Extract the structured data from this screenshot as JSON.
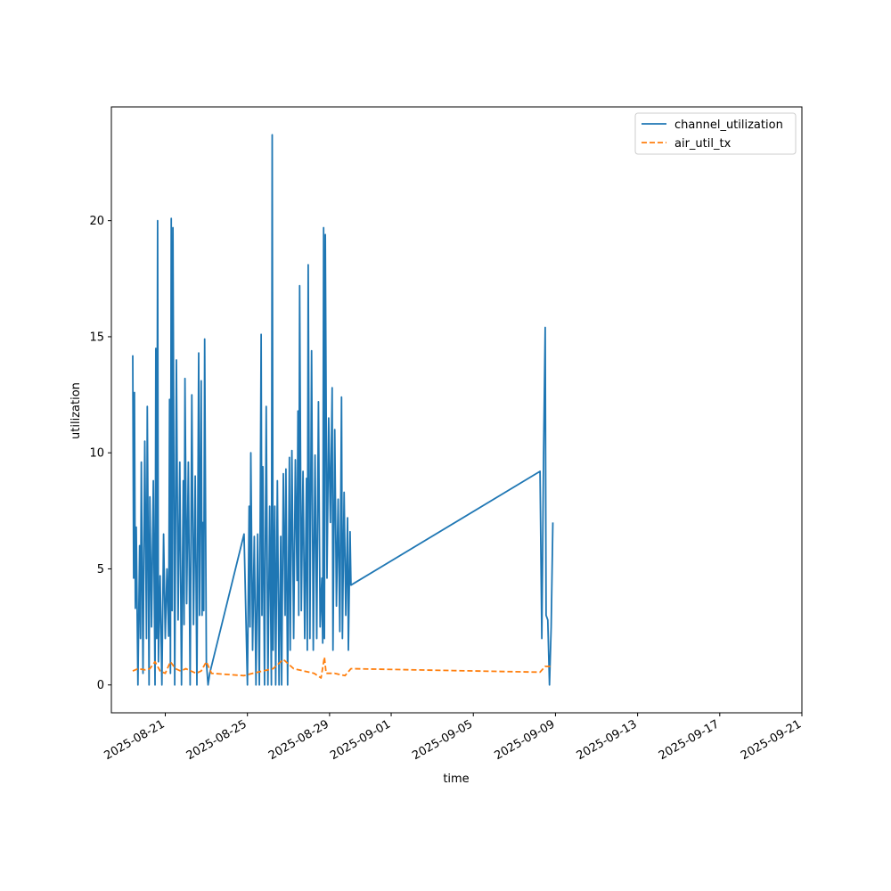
{
  "chart_data": {
    "type": "line",
    "title": "",
    "xlabel": "time",
    "ylabel": "utilization",
    "xlim": [
      "2025-08-18T09:00",
      "2025-09-21T00:00"
    ],
    "ylim": [
      -1.2,
      24.9
    ],
    "x_ticks": [
      "2025-08-21",
      "2025-08-25",
      "2025-08-29",
      "2025-09-01",
      "2025-09-05",
      "2025-09-09",
      "2025-09-13",
      "2025-09-17",
      "2025-09-21"
    ],
    "y_ticks": [
      0,
      5,
      10,
      15,
      20
    ],
    "legend_position": "top-right",
    "grid": false,
    "series": [
      {
        "name": "channel_utilization",
        "color": "#1f77b4",
        "style": "solid",
        "points": [
          [
            "2025-08-19T10:00",
            14.2
          ],
          [
            "2025-08-19T11:00",
            4.6
          ],
          [
            "2025-08-19T12:00",
            12.6
          ],
          [
            "2025-08-19T13:00",
            3.3
          ],
          [
            "2025-08-19T14:00",
            6.8
          ],
          [
            "2025-08-19T16:00",
            0.0
          ],
          [
            "2025-08-19T18:00",
            6.0
          ],
          [
            "2025-08-19T19:00",
            2.0
          ],
          [
            "2025-08-19T20:00",
            9.6
          ],
          [
            "2025-08-19T22:00",
            0.5
          ],
          [
            "2025-08-20T00:00",
            10.5
          ],
          [
            "2025-08-20T02:00",
            2.0
          ],
          [
            "2025-08-20T03:00",
            12.0
          ],
          [
            "2025-08-20T05:00",
            0.0
          ],
          [
            "2025-08-20T06:00",
            8.1
          ],
          [
            "2025-08-20T08:00",
            2.5
          ],
          [
            "2025-08-20T10:00",
            8.8
          ],
          [
            "2025-08-20T12:00",
            0.0
          ],
          [
            "2025-08-20T13:00",
            14.5
          ],
          [
            "2025-08-20T14:00",
            2.0
          ],
          [
            "2025-08-20T15:00",
            20.0
          ],
          [
            "2025-08-20T16:00",
            1.0
          ],
          [
            "2025-08-20T18:00",
            4.7
          ],
          [
            "2025-08-20T20:00",
            0.0
          ],
          [
            "2025-08-20T22:00",
            6.5
          ],
          [
            "2025-08-21T00:00",
            2.0
          ],
          [
            "2025-08-21T02:00",
            5.0
          ],
          [
            "2025-08-21T04:00",
            2.1
          ],
          [
            "2025-08-21T05:00",
            12.3
          ],
          [
            "2025-08-21T06:00",
            0.5
          ],
          [
            "2025-08-21T07:00",
            20.1
          ],
          [
            "2025-08-21T08:00",
            3.2
          ],
          [
            "2025-08-21T09:00",
            19.7
          ],
          [
            "2025-08-21T11:00",
            0.0
          ],
          [
            "2025-08-21T13:00",
            14.0
          ],
          [
            "2025-08-21T15:00",
            2.8
          ],
          [
            "2025-08-21T17:00",
            9.6
          ],
          [
            "2025-08-21T19:00",
            0.0
          ],
          [
            "2025-08-21T21:00",
            8.8
          ],
          [
            "2025-08-21T22:00",
            2.6
          ],
          [
            "2025-08-21T23:00",
            13.2
          ],
          [
            "2025-08-22T01:00",
            3.5
          ],
          [
            "2025-08-22T03:00",
            9.6
          ],
          [
            "2025-08-22T05:00",
            0.0
          ],
          [
            "2025-08-22T07:00",
            12.5
          ],
          [
            "2025-08-22T09:00",
            2.6
          ],
          [
            "2025-08-22T11:00",
            9.0
          ],
          [
            "2025-08-22T13:00",
            0.0
          ],
          [
            "2025-08-22T15:00",
            14.3
          ],
          [
            "2025-08-22T16:00",
            3.0
          ],
          [
            "2025-08-22T18:00",
            13.1
          ],
          [
            "2025-08-22T19:00",
            3.0
          ],
          [
            "2025-08-22T20:00",
            7.0
          ],
          [
            "2025-08-22T21:00",
            3.2
          ],
          [
            "2025-08-22T22:00",
            14.9
          ],
          [
            "2025-08-23T00:00",
            1.0
          ],
          [
            "2025-08-23T02:00",
            0.0
          ],
          [
            "2025-08-23T04:00",
            0.5
          ],
          [
            "2025-08-24T20:00",
            6.5
          ],
          [
            "2025-08-25T00:00",
            0.0
          ],
          [
            "2025-08-25T02:00",
            7.7
          ],
          [
            "2025-08-25T03:00",
            2.5
          ],
          [
            "2025-08-25T04:00",
            10.0
          ],
          [
            "2025-08-25T06:00",
            1.5
          ],
          [
            "2025-08-25T08:00",
            6.4
          ],
          [
            "2025-08-25T10:00",
            0.0
          ],
          [
            "2025-08-25T12:00",
            6.5
          ],
          [
            "2025-08-25T14:00",
            0.0
          ],
          [
            "2025-08-25T16:00",
            15.1
          ],
          [
            "2025-08-25T17:00",
            3.0
          ],
          [
            "2025-08-25T18:00",
            9.4
          ],
          [
            "2025-08-25T20:00",
            0.0
          ],
          [
            "2025-08-25T22:00",
            12.0
          ],
          [
            "2025-08-26T00:00",
            0.0
          ],
          [
            "2025-08-26T02:00",
            7.7
          ],
          [
            "2025-08-26T04:00",
            0.0
          ],
          [
            "2025-08-26T05:00",
            23.7
          ],
          [
            "2025-08-26T06:00",
            1.5
          ],
          [
            "2025-08-26T08:00",
            7.7
          ],
          [
            "2025-08-26T09:00",
            0.0
          ],
          [
            "2025-08-26T11:00",
            8.8
          ],
          [
            "2025-08-26T13:00",
            0.0
          ],
          [
            "2025-08-26T15:00",
            6.4
          ],
          [
            "2025-08-26T16:00",
            0.0
          ],
          [
            "2025-08-26T18:00",
            9.1
          ],
          [
            "2025-08-26T20:00",
            3.0
          ],
          [
            "2025-08-26T21:00",
            9.3
          ],
          [
            "2025-08-26T23:00",
            0.0
          ],
          [
            "2025-08-27T01:00",
            9.8
          ],
          [
            "2025-08-27T02:00",
            1.5
          ],
          [
            "2025-08-27T04:00",
            10.1
          ],
          [
            "2025-08-27T06:00",
            2.0
          ],
          [
            "2025-08-27T08:00",
            9.7
          ],
          [
            "2025-08-27T10:00",
            4.5
          ],
          [
            "2025-08-27T11:00",
            11.8
          ],
          [
            "2025-08-27T12:00",
            3.0
          ],
          [
            "2025-08-27T13:00",
            17.2
          ],
          [
            "2025-08-27T15:00",
            3.2
          ],
          [
            "2025-08-27T17:00",
            9.2
          ],
          [
            "2025-08-27T19:00",
            2.0
          ],
          [
            "2025-08-27T21:00",
            8.9
          ],
          [
            "2025-08-27T22:00",
            1.5
          ],
          [
            "2025-08-27T23:00",
            18.1
          ],
          [
            "2025-08-28T01:00",
            2.0
          ],
          [
            "2025-08-28T03:00",
            14.4
          ],
          [
            "2025-08-28T05:00",
            1.5
          ],
          [
            "2025-08-28T07:00",
            9.9
          ],
          [
            "2025-08-28T09:00",
            2.0
          ],
          [
            "2025-08-28T11:00",
            12.2
          ],
          [
            "2025-08-28T13:00",
            2.5
          ],
          [
            "2025-08-28T15:00",
            4.6
          ],
          [
            "2025-08-28T16:00",
            1.8
          ],
          [
            "2025-08-28T17:00",
            19.7
          ],
          [
            "2025-08-28T18:00",
            2.0
          ],
          [
            "2025-08-28T19:00",
            19.4
          ],
          [
            "2025-08-28T21:00",
            4.6
          ],
          [
            "2025-08-28T23:00",
            11.5
          ],
          [
            "2025-08-29T01:00",
            7.0
          ],
          [
            "2025-08-29T03:00",
            12.8
          ],
          [
            "2025-08-29T04:00",
            1.5
          ],
          [
            "2025-08-29T06:00",
            11.0
          ],
          [
            "2025-08-29T08:00",
            3.4
          ],
          [
            "2025-08-29T10:00",
            8.0
          ],
          [
            "2025-08-29T12:00",
            2.3
          ],
          [
            "2025-08-29T14:00",
            12.4
          ],
          [
            "2025-08-29T15:00",
            2.0
          ],
          [
            "2025-08-29T17:00",
            8.3
          ],
          [
            "2025-08-29T19:00",
            3.0
          ],
          [
            "2025-08-29T21:00",
            7.2
          ],
          [
            "2025-08-29T22:00",
            1.5
          ],
          [
            "2025-08-30T00:00",
            6.6
          ],
          [
            "2025-08-30T01:00",
            4.3
          ],
          [
            "2025-09-08T06:00",
            9.2
          ],
          [
            "2025-09-08T08:00",
            2.0
          ],
          [
            "2025-09-08T10:00",
            9.7
          ],
          [
            "2025-09-08T12:00",
            15.4
          ],
          [
            "2025-09-08T13:00",
            3.0
          ],
          [
            "2025-09-08T15:00",
            2.8
          ],
          [
            "2025-09-08T17:00",
            0.0
          ],
          [
            "2025-09-08T19:00",
            2.5
          ],
          [
            "2025-09-08T21:00",
            7.0
          ]
        ]
      },
      {
        "name": "air_util_tx",
        "color": "#ff7f0e",
        "style": "dashed",
        "points": [
          [
            "2025-08-19T10:00",
            0.6
          ],
          [
            "2025-08-19T16:00",
            0.7
          ],
          [
            "2025-08-20T00:00",
            0.65
          ],
          [
            "2025-08-20T06:00",
            0.7
          ],
          [
            "2025-08-20T12:00",
            1.0
          ],
          [
            "2025-08-20T18:00",
            0.6
          ],
          [
            "2025-08-21T00:00",
            0.5
          ],
          [
            "2025-08-21T06:00",
            1.0
          ],
          [
            "2025-08-21T12:00",
            0.7
          ],
          [
            "2025-08-21T18:00",
            0.6
          ],
          [
            "2025-08-22T00:00",
            0.7
          ],
          [
            "2025-08-22T06:00",
            0.6
          ],
          [
            "2025-08-22T12:00",
            0.5
          ],
          [
            "2025-08-22T18:00",
            0.6
          ],
          [
            "2025-08-23T00:00",
            1.0
          ],
          [
            "2025-08-23T06:00",
            0.5
          ],
          [
            "2025-08-24T20:00",
            0.4
          ],
          [
            "2025-08-25T06:00",
            0.5
          ],
          [
            "2025-08-25T18:00",
            0.6
          ],
          [
            "2025-08-26T06:00",
            0.7
          ],
          [
            "2025-08-26T18:00",
            1.1
          ],
          [
            "2025-08-27T06:00",
            0.7
          ],
          [
            "2025-08-27T18:00",
            0.6
          ],
          [
            "2025-08-28T06:00",
            0.5
          ],
          [
            "2025-08-28T14:00",
            0.3
          ],
          [
            "2025-08-28T18:00",
            1.2
          ],
          [
            "2025-08-28T20:00",
            0.5
          ],
          [
            "2025-08-29T06:00",
            0.5
          ],
          [
            "2025-08-29T18:00",
            0.4
          ],
          [
            "2025-08-30T01:00",
            0.7
          ],
          [
            "2025-09-08T06:00",
            0.55
          ],
          [
            "2025-09-08T12:00",
            0.8
          ],
          [
            "2025-09-08T21:00",
            0.8
          ]
        ]
      }
    ]
  }
}
